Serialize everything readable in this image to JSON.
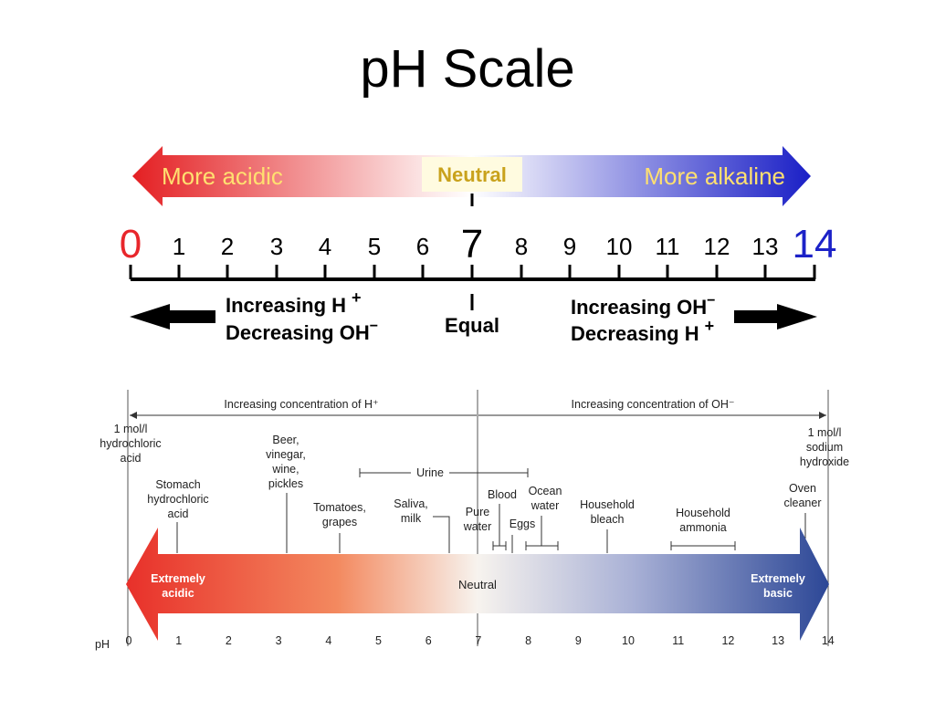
{
  "title": "pH Scale",
  "colors": {
    "acid": "#e8262b",
    "base": "#1c22c8",
    "neutral_box": "#fff2b0",
    "neutral_text": "#c7a01a"
  },
  "top": {
    "arrow_left_label": "More acidic",
    "neutral_label": "Neutral",
    "arrow_right_label": "More alkaline",
    "scale_numbers": [
      "0",
      "1",
      "2",
      "3",
      "4",
      "5",
      "6",
      "7",
      "8",
      "9",
      "10",
      "11",
      "12",
      "13",
      "14"
    ],
    "left_line1": "Increasing H",
    "left_line1_sup": "+",
    "left_line2": "Decreasing OH",
    "left_line2_sup": "−",
    "center_label": "Equal",
    "right_line1": "Increasing OH",
    "right_line1_sup": "−",
    "right_line2": "Decreasing H",
    "right_line2_sup": "+"
  },
  "bottom": {
    "conc_left": "Increasing concentration of H⁺",
    "conc_right": "Increasing concentration of OH⁻",
    "ph_axis_label": "pH",
    "ph_ticks": [
      "0",
      "1",
      "2",
      "3",
      "4",
      "5",
      "6",
      "7",
      "8",
      "9",
      "10",
      "11",
      "12",
      "13",
      "14"
    ],
    "extremely_acidic": [
      "Extremely",
      "acidic"
    ],
    "neutral": "Neutral",
    "extremely_basic": [
      "Extremely",
      "basic"
    ],
    "items": {
      "hcl": [
        "1 mol/l",
        "hydrochloric",
        "acid"
      ],
      "stomach": [
        "Stomach",
        "hydrochloric",
        "acid"
      ],
      "beer": [
        "Beer,",
        "vinegar,",
        "wine,",
        "pickles"
      ],
      "tomatoes": [
        "Tomatoes,",
        "grapes"
      ],
      "saliva": [
        "Saliva,",
        "milk"
      ],
      "urine": "Urine",
      "pure_water": [
        "Pure",
        "water"
      ],
      "blood": "Blood",
      "eggs": "Eggs",
      "ocean": [
        "Ocean",
        "water"
      ],
      "bleach": [
        "Household",
        "bleach"
      ],
      "ammonia": [
        "Household",
        "ammonia"
      ],
      "naoh": [
        "1 mol/l",
        "sodium",
        "hydroxide"
      ],
      "oven": [
        "Oven",
        "cleaner"
      ]
    }
  }
}
